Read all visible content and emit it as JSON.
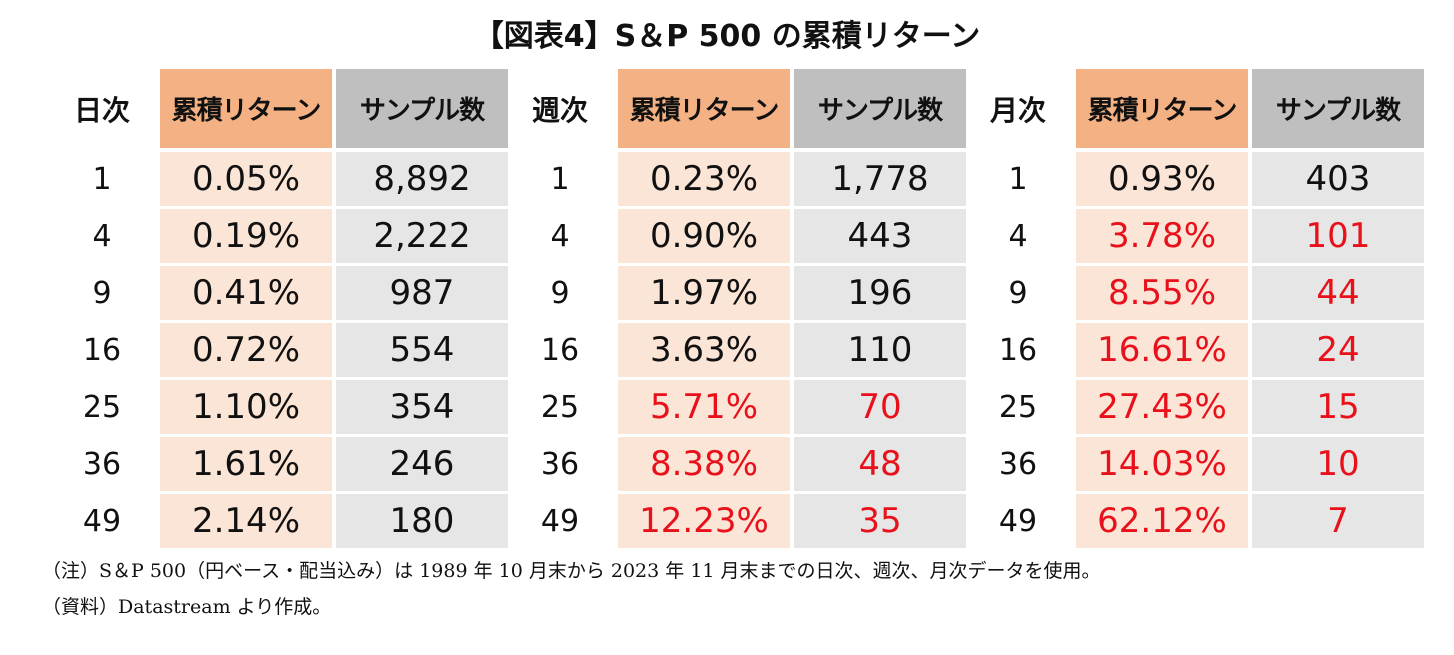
{
  "title": "【図表4】S＆P 500 の累積リターン",
  "colors": {
    "return_header": "#f4b183",
    "return_cell": "#fbe5d6",
    "count_header": "#bfbfbf",
    "count_cell": "#e6e6e6",
    "highlight_text": "#e8111b"
  },
  "chart_data": [
    {
      "type": "table",
      "title": "日次",
      "columns": [
        "日次",
        "累積リターン",
        "サンプル数"
      ],
      "rows": [
        {
          "period": "1",
          "return": "0.05%",
          "samples": "8,892",
          "highlight": false
        },
        {
          "period": "4",
          "return": "0.19%",
          "samples": "2,222",
          "highlight": false
        },
        {
          "period": "9",
          "return": "0.41%",
          "samples": "987",
          "highlight": false
        },
        {
          "period": "16",
          "return": "0.72%",
          "samples": "554",
          "highlight": false
        },
        {
          "period": "25",
          "return": "1.10%",
          "samples": "354",
          "highlight": false
        },
        {
          "period": "36",
          "return": "1.61%",
          "samples": "246",
          "highlight": false
        },
        {
          "period": "49",
          "return": "2.14%",
          "samples": "180",
          "highlight": false
        }
      ]
    },
    {
      "type": "table",
      "title": "週次",
      "columns": [
        "週次",
        "累積リターン",
        "サンプル数"
      ],
      "rows": [
        {
          "period": "1",
          "return": "0.23%",
          "samples": "1,778",
          "highlight": false
        },
        {
          "period": "4",
          "return": "0.90%",
          "samples": "443",
          "highlight": false
        },
        {
          "period": "9",
          "return": "1.97%",
          "samples": "196",
          "highlight": false
        },
        {
          "period": "16",
          "return": "3.63%",
          "samples": "110",
          "highlight": false
        },
        {
          "period": "25",
          "return": "5.71%",
          "samples": "70",
          "highlight": true
        },
        {
          "period": "36",
          "return": "8.38%",
          "samples": "48",
          "highlight": true
        },
        {
          "period": "49",
          "return": "12.23%",
          "samples": "35",
          "highlight": true
        }
      ]
    },
    {
      "type": "table",
      "title": "月次",
      "columns": [
        "月次",
        "累積リターン",
        "サンプル数"
      ],
      "rows": [
        {
          "period": "1",
          "return": "0.93%",
          "samples": "403",
          "highlight": false
        },
        {
          "period": "4",
          "return": "3.78%",
          "samples": "101",
          "highlight": true
        },
        {
          "period": "9",
          "return": "8.55%",
          "samples": "44",
          "highlight": true
        },
        {
          "period": "16",
          "return": "16.61%",
          "samples": "24",
          "highlight": true
        },
        {
          "period": "25",
          "return": "27.43%",
          "samples": "15",
          "highlight": true
        },
        {
          "period": "36",
          "return": "14.03%",
          "samples": "10",
          "highlight": true
        },
        {
          "period": "49",
          "return": "62.12%",
          "samples": "7",
          "highlight": true
        }
      ]
    }
  ],
  "notes": {
    "note": "（注）S＆P 500（円ベース・配当込み）は 1989 年 10 月末から 2023 年 11 月末までの日次、週次、月次データを使用。",
    "source": "（資料）Datastream より作成。"
  }
}
